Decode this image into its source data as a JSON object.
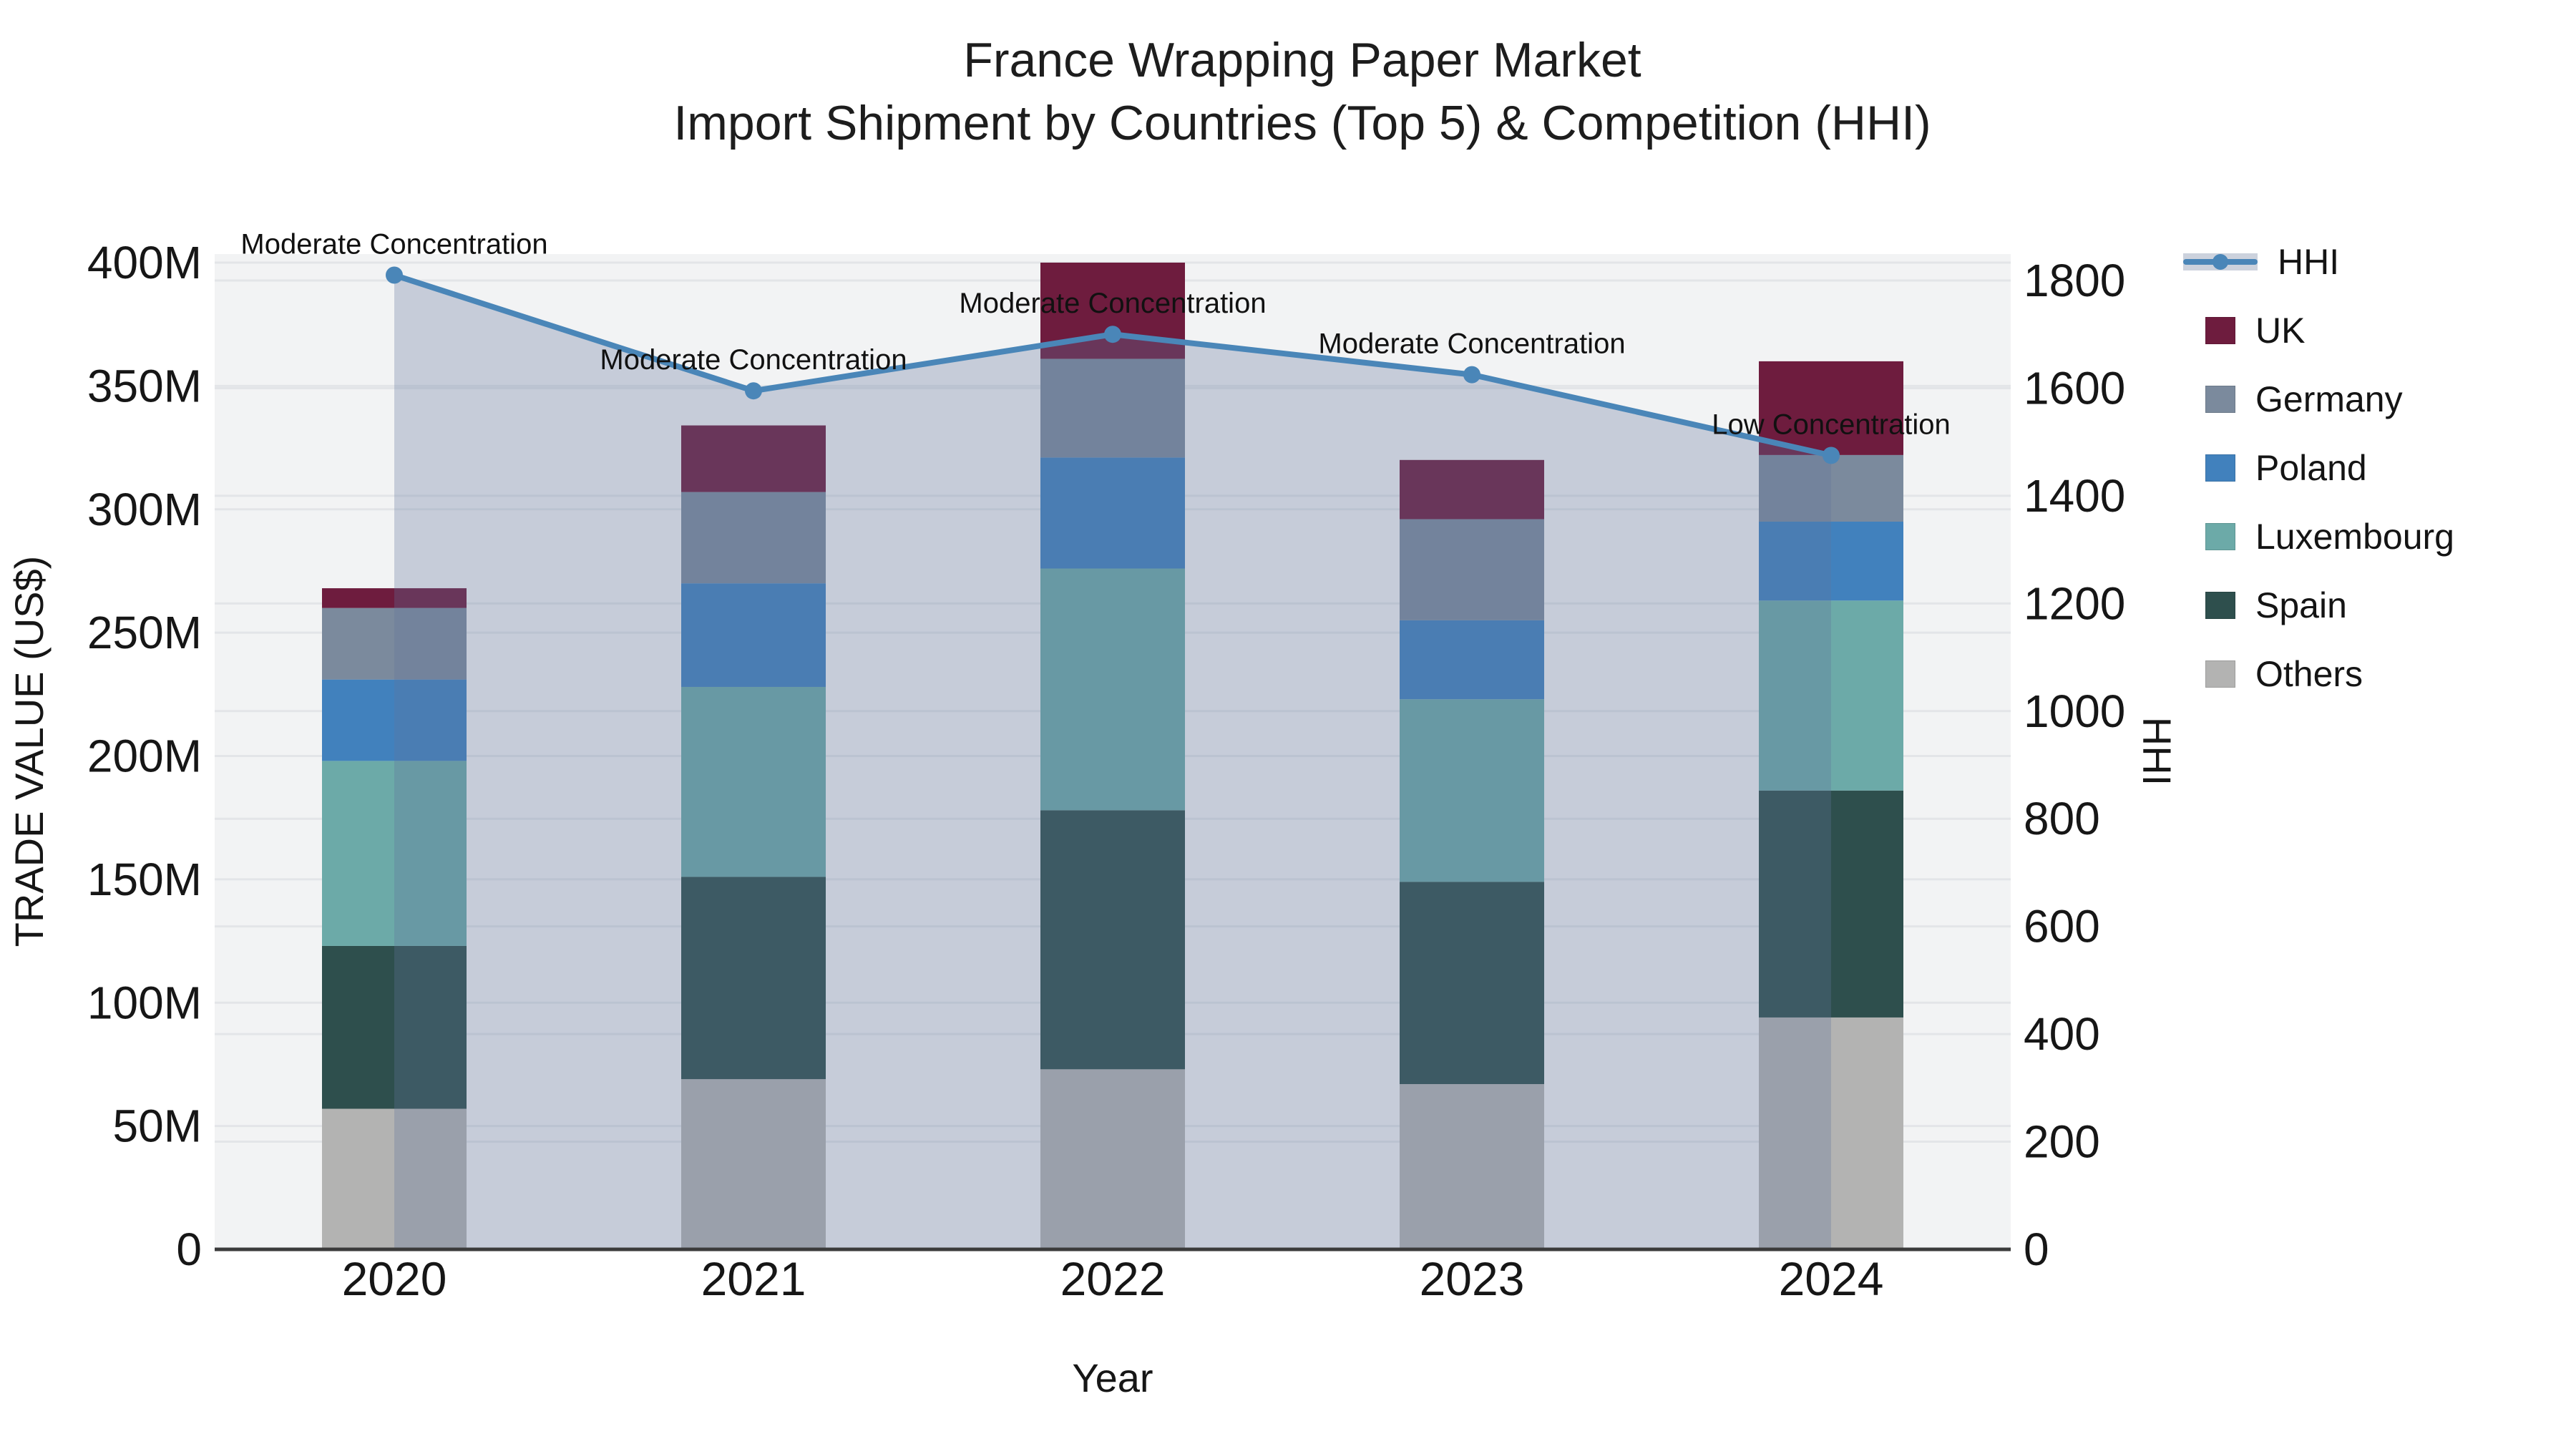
{
  "title": {
    "line1": "France Wrapping Paper Market",
    "line2": "Import Shipment by Countries (Top 5) & Competition (HHI)"
  },
  "chart_data": {
    "type": "bar",
    "subtype": "stacked-bars-with-line-overlay",
    "categories": [
      "2020",
      "2021",
      "2022",
      "2023",
      "2024"
    ],
    "xlabel": "Year",
    "ylabel_left": "TRADE VALUE (US$)",
    "ylabel_right": "HHI",
    "ylim_left": [
      0,
      400000000
    ],
    "ylim_right": [
      0,
      1800
    ],
    "left_ticks": [
      "0",
      "50M",
      "100M",
      "150M",
      "200M",
      "250M",
      "300M",
      "350M",
      "400M"
    ],
    "left_tick_values": [
      0,
      50,
      100,
      150,
      200,
      250,
      300,
      350,
      400
    ],
    "right_ticks": [
      "0",
      "200",
      "400",
      "600",
      "800",
      "1000",
      "1200",
      "1400",
      "1600",
      "1800"
    ],
    "right_tick_values": [
      0,
      200,
      400,
      600,
      800,
      1000,
      1200,
      1400,
      1600,
      1800
    ],
    "grid": true,
    "legend_position": "right",
    "series": [
      {
        "name": "Others",
        "color": "#b3b3b2",
        "values": [
          57,
          69,
          73,
          67,
          94
        ]
      },
      {
        "name": "Spain",
        "color": "#2e4f4d",
        "values": [
          66,
          82,
          105,
          82,
          92
        ]
      },
      {
        "name": "Luxembourg",
        "color": "#6caaa8",
        "values": [
          75,
          77,
          98,
          74,
          77
        ]
      },
      {
        "name": "Poland",
        "color": "#4181bd",
        "values": [
          33,
          42,
          45,
          32,
          32
        ]
      },
      {
        "name": "Germany",
        "color": "#7b8a9d",
        "values": [
          29,
          37,
          40,
          41,
          27
        ]
      },
      {
        "name": "UK",
        "color": "#6e1c3e",
        "values": [
          8,
          27,
          39,
          24,
          38
        ]
      }
    ],
    "series_unit": "millions US$",
    "bar_totals": [
      268,
      334,
      400,
      320,
      360
    ],
    "line_series": {
      "name": "HHI",
      "color": "#4a86b8",
      "fill_color": "rgba(95,115,155,0.30)",
      "values": [
        1810,
        1595,
        1700,
        1625,
        1475
      ]
    },
    "annotations": [
      {
        "x": "2020",
        "text": "Moderate Concentration"
      },
      {
        "x": "2021",
        "text": "Moderate Concentration"
      },
      {
        "x": "2022",
        "text": "Moderate Concentration"
      },
      {
        "x": "2023",
        "text": "Moderate Concentration"
      },
      {
        "x": "2024",
        "text": "Low Concentration"
      }
    ]
  },
  "legend": {
    "hhi_label": "HHI",
    "items": [
      {
        "label": "UK",
        "color": "#6e1c3e"
      },
      {
        "label": "Germany",
        "color": "#7b8a9d"
      },
      {
        "label": "Poland",
        "color": "#4181bd"
      },
      {
        "label": "Luxembourg",
        "color": "#6caaa8"
      },
      {
        "label": "Spain",
        "color": "#2e4f4d"
      },
      {
        "label": "Others",
        "color": "#b3b3b2"
      }
    ]
  },
  "colors": {
    "plot_background": "#f2f3f4",
    "gridline": "#e3e5e8",
    "axis_line": "#3b3b3b",
    "text": "#161616"
  }
}
